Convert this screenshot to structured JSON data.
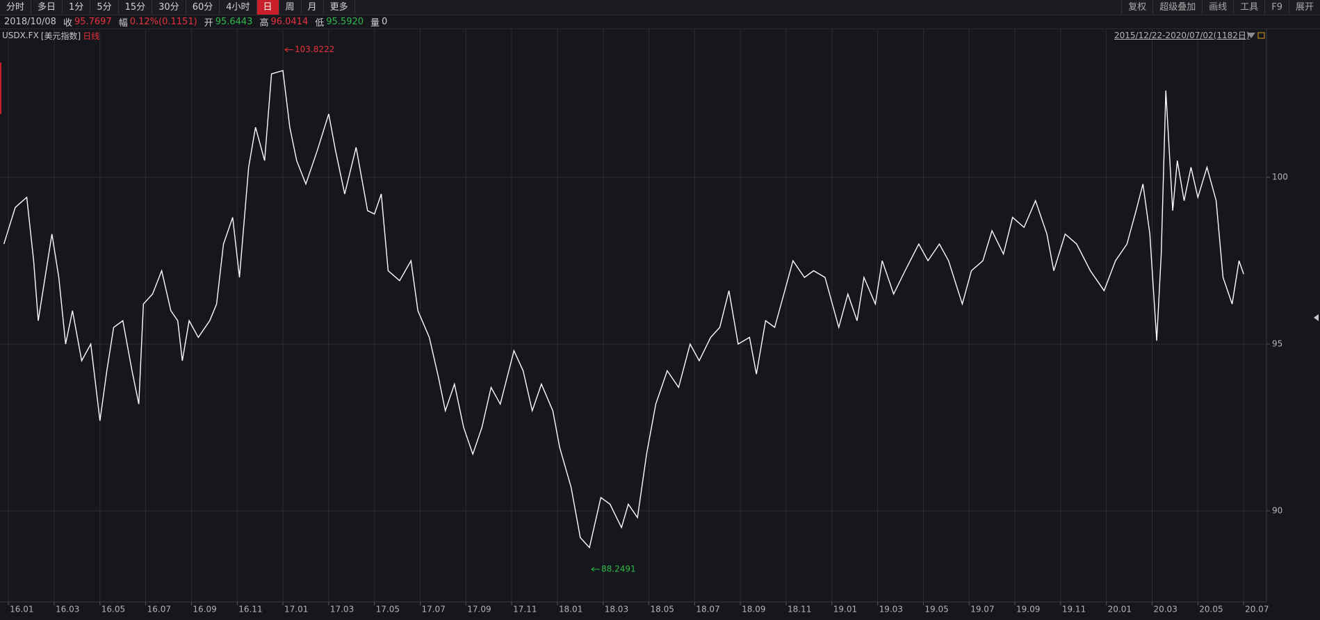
{
  "toolbar": {
    "left": [
      "分时",
      "多日",
      "1分",
      "5分",
      "15分",
      "30分",
      "60分",
      "4小时",
      "日",
      "周",
      "月",
      "更多"
    ],
    "selected": 8,
    "right": [
      "复权",
      "超级叠加",
      "画线",
      "工具",
      "F9",
      "展开"
    ]
  },
  "info": {
    "date": "2018/10/08",
    "items": [
      {
        "label": "收",
        "value": "95.7697",
        "color": "#e8323c"
      },
      {
        "label": "幅",
        "value": "0.12%(0.1151)",
        "color": "#e8323c"
      },
      {
        "label": "开",
        "value": "95.6443",
        "color": "#2fb84a"
      },
      {
        "label": "高",
        "value": "96.0414",
        "color": "#e8323c"
      },
      {
        "label": "低",
        "value": "95.5920",
        "color": "#2fb84a"
      },
      {
        "label": "量",
        "value": "0",
        "color": "#d0d0d0"
      }
    ]
  },
  "chart_data": {
    "type": "line",
    "security_name": "[美元指数]",
    "period": "日线",
    "range_label": "2015/12/22-2020/07/02(1182日)",
    "max_label": 103.8222,
    "max_color": "#e8323c",
    "min_label": 88.2491,
    "min_color": "#2fb84a",
    "x": [
      -0.2,
      0.3,
      0.8,
      1.1,
      1.3,
      1.9,
      2.2,
      2.5,
      2.8,
      3.2,
      3.6,
      4.0,
      4.3,
      4.6,
      5.0,
      5.4,
      5.7,
      5.9,
      6.3,
      6.7,
      7.1,
      7.4,
      7.6,
      7.9,
      8.3,
      8.8,
      9.1,
      9.4,
      9.8,
      10.1,
      10.5,
      10.8,
      11.2,
      11.5,
      12.0,
      12.3,
      12.6,
      13.0,
      13.5,
      14.0,
      14.3,
      14.7,
      15.2,
      15.7,
      16.0,
      16.3,
      16.6,
      17.1,
      17.6,
      17.9,
      18.4,
      18.8,
      19.1,
      19.5,
      19.9,
      20.3,
      20.7,
      21.1,
      21.5,
      22.1,
      22.5,
      22.9,
      23.3,
      23.8,
      24.1,
      24.6,
      25.0,
      25.4,
      25.9,
      26.3,
      26.8,
      27.1,
      27.5,
      27.9,
      28.3,
      28.8,
      29.3,
      29.8,
      30.2,
      30.7,
      31.1,
      31.5,
      31.9,
      32.4,
      32.7,
      33.1,
      33.5,
      33.9,
      34.3,
      34.8,
      35.2,
      35.7,
      36.3,
      36.7,
      37.1,
      37.4,
      37.9,
      38.2,
      38.7,
      39.2,
      39.8,
      40.2,
      40.7,
      41.1,
      41.7,
      42.1,
      42.6,
      43.0,
      43.5,
      43.9,
      44.4,
      44.9,
      45.4,
      45.7,
      46.2,
      46.7,
      47.3,
      47.9,
      48.4,
      48.9,
      49.3,
      49.6,
      49.9,
      50.2,
      50.4,
      50.6,
      50.9,
      51.1,
      51.4,
      51.7,
      52.0,
      52.4,
      52.8,
      53.1,
      53.5,
      53.8,
      54.0
    ],
    "series": [
      {
        "name": "USDX.FX",
        "color": "#ffffff",
        "values": [
          98.0,
          99.1,
          99.4,
          97.5,
          95.7,
          98.3,
          97.0,
          95.0,
          96.0,
          94.5,
          95.0,
          92.7,
          94.2,
          95.5,
          95.7,
          94.2,
          93.2,
          96.2,
          96.5,
          97.2,
          96.0,
          95.7,
          94.5,
          95.7,
          95.2,
          95.7,
          96.2,
          98.0,
          98.8,
          97.0,
          100.3,
          101.5,
          100.5,
          103.1,
          103.2,
          101.5,
          100.5,
          99.8,
          100.8,
          101.9,
          100.8,
          99.5,
          100.9,
          99.0,
          98.9,
          99.5,
          97.2,
          96.9,
          97.5,
          96.0,
          95.2,
          94.0,
          93.0,
          93.8,
          92.5,
          91.7,
          92.5,
          93.7,
          93.2,
          94.8,
          94.2,
          93.0,
          93.8,
          93.0,
          91.9,
          90.7,
          89.2,
          88.9,
          90.4,
          90.2,
          89.5,
          90.2,
          89.8,
          91.7,
          93.2,
          94.2,
          93.7,
          95.0,
          94.5,
          95.2,
          95.5,
          96.6,
          95.0,
          95.2,
          94.1,
          95.7,
          95.5,
          96.5,
          97.5,
          97.0,
          97.2,
          97.0,
          95.5,
          96.5,
          95.7,
          97.0,
          96.2,
          97.5,
          96.5,
          97.2,
          98.0,
          97.5,
          98.0,
          97.5,
          96.2,
          97.2,
          97.5,
          98.4,
          97.7,
          98.8,
          98.5,
          99.3,
          98.3,
          97.2,
          98.3,
          98.0,
          97.2,
          96.6,
          97.5,
          98.0,
          99.0,
          99.8,
          98.3,
          95.1,
          97.7,
          102.6,
          99.0,
          100.5,
          99.3,
          100.3,
          99.4,
          100.3,
          99.3,
          97.0,
          96.2,
          97.5,
          97.1
        ]
      }
    ],
    "xlim": [
      -0.37,
      55
    ],
    "ylim": [
      87.27,
      104.44
    ],
    "xticks": [
      {
        "value": 0,
        "label": "16.01"
      },
      {
        "value": 2,
        "label": "16.03"
      },
      {
        "value": 4,
        "label": "16.05"
      },
      {
        "value": 6,
        "label": "16.07"
      },
      {
        "value": 8,
        "label": "16.09"
      },
      {
        "value": 10,
        "label": "16.11"
      },
      {
        "value": 12,
        "label": "17.01"
      },
      {
        "value": 14,
        "label": "17.03"
      },
      {
        "value": 16,
        "label": "17.05"
      },
      {
        "value": 18,
        "label": "17.07"
      },
      {
        "value": 20,
        "label": "17.09"
      },
      {
        "value": 22,
        "label": "17.11"
      },
      {
        "value": 24,
        "label": "18.01"
      },
      {
        "value": 26,
        "label": "18.03"
      },
      {
        "value": 28,
        "label": "18.05"
      },
      {
        "value": 30,
        "label": "18.07"
      },
      {
        "value": 32,
        "label": "18.09"
      },
      {
        "value": 34,
        "label": "18.11"
      },
      {
        "value": 36,
        "label": "19.01"
      },
      {
        "value": 38,
        "label": "19.03"
      },
      {
        "value": 40,
        "label": "19.05"
      },
      {
        "value": 42,
        "label": "19.07"
      },
      {
        "value": 44,
        "label": "19.09"
      },
      {
        "value": 46,
        "label": "19.11"
      },
      {
        "value": 48,
        "label": "20.01"
      },
      {
        "value": 50,
        "label": "20.03"
      },
      {
        "value": 52,
        "label": "20.05"
      },
      {
        "value": 54,
        "label": "20.07"
      }
    ],
    "yticks": [
      90,
      95,
      100
    ],
    "grid": true
  }
}
